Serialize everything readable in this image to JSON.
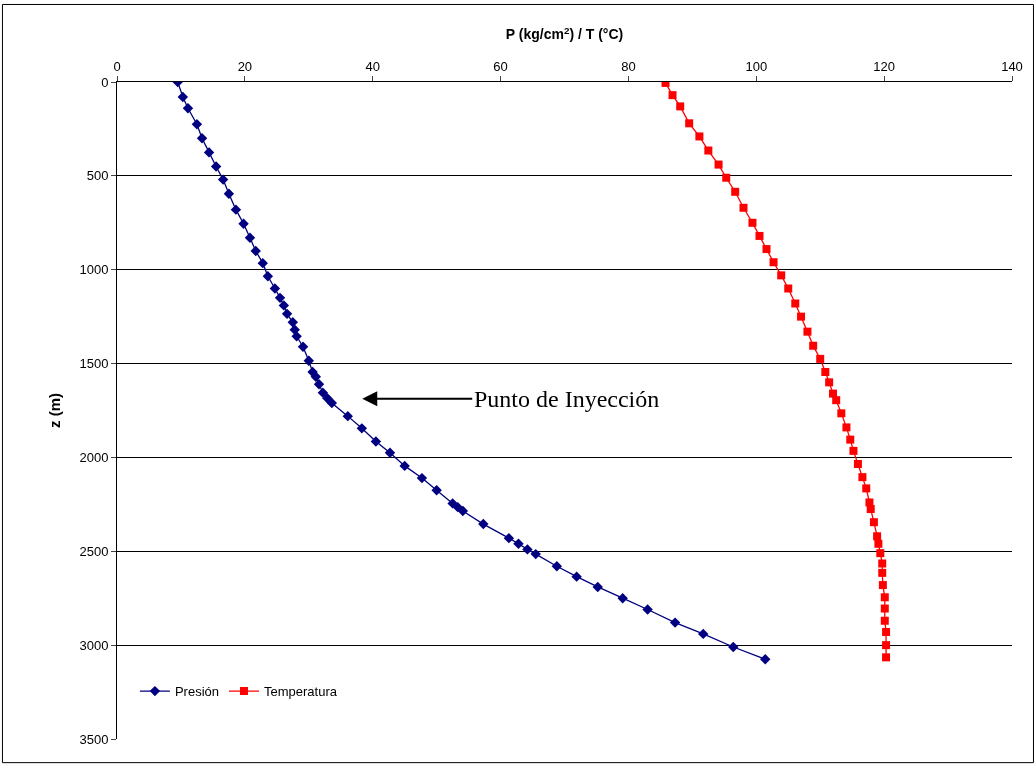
{
  "chart_data": {
    "type": "line",
    "xlabel": "P (kg/cm$^{2}$) / T (°C)",
    "ylabel": "z (m)",
    "xlim": [
      0,
      140
    ],
    "xticks": [
      0,
      20,
      40,
      60,
      80,
      100,
      120,
      140
    ],
    "ylim": [
      3500,
      0
    ],
    "yticks": [
      0,
      500,
      1000,
      1500,
      2000,
      2500,
      3000,
      3500
    ],
    "grid": "y",
    "legend": "bottom left",
    "annotations": [
      "Punto de Inyección"
    ],
    "series": [
      {
        "name": "Presión",
        "color": "#000080",
        "marker": "diamond",
        "x": [
          9.5,
          10.3,
          11.1,
          12.5,
          13.3,
          14.4,
          15.5,
          16.6,
          17.5,
          18.6,
          19.8,
          20.8,
          21.7,
          22.8,
          23.6,
          24.7,
          25.5,
          26.1,
          26.6,
          27.5,
          27.8,
          28.1,
          29.1,
          30.0,
          30.6,
          31.1,
          31.6,
          32.2,
          32.9,
          33.6,
          36.1,
          38.3,
          40.5,
          42.7,
          45.0,
          47.7,
          50.0,
          52.5,
          53.3,
          54.1,
          57.3,
          61.3,
          62.8,
          64.2,
          65.5,
          68.8,
          71.9,
          75.2,
          79.1,
          83.0,
          87.3,
          91.7,
          96.4,
          101.4
        ],
        "values": [
          0,
          80,
          140,
          225,
          300,
          375,
          450,
          520,
          595,
          680,
          755,
          830,
          900,
          965,
          1035,
          1100,
          1150,
          1190,
          1235,
          1280,
          1320,
          1355,
          1410,
          1485,
          1545,
          1570,
          1610,
          1655,
          1685,
          1710,
          1780,
          1845,
          1915,
          1975,
          2045,
          2110,
          2175,
          2245,
          2265,
          2285,
          2355,
          2430,
          2460,
          2490,
          2515,
          2580,
          2635,
          2690,
          2750,
          2810,
          2880,
          2940,
          3010,
          3075
        ]
      },
      {
        "name": "Temperatura",
        "color": "#ff0000",
        "marker": "square",
        "x": [
          85.8,
          86.9,
          88.1,
          89.5,
          91.1,
          92.5,
          94.1,
          95.3,
          96.7,
          98.0,
          99.4,
          100.5,
          101.6,
          102.7,
          103.9,
          105.0,
          106.1,
          107.0,
          108.0,
          108.9,
          110.0,
          110.8,
          111.4,
          112.0,
          112.5,
          113.3,
          114.1,
          114.7,
          115.2,
          115.9,
          116.6,
          117.2,
          117.7,
          117.9,
          118.4,
          118.9,
          119.1,
          119.4,
          119.7,
          119.7,
          119.8,
          120.1,
          120.1,
          120.1,
          120.3,
          120.3,
          120.3
        ],
        "values": [
          5,
          70,
          130,
          220,
          290,
          365,
          440,
          510,
          585,
          670,
          750,
          820,
          890,
          960,
          1030,
          1100,
          1180,
          1250,
          1330,
          1405,
          1475,
          1545,
          1600,
          1660,
          1695,
          1765,
          1840,
          1905,
          1965,
          2035,
          2105,
          2165,
          2240,
          2275,
          2345,
          2420,
          2460,
          2510,
          2565,
          2615,
          2680,
          2745,
          2805,
          2870,
          2930,
          3000,
          3065
        ]
      }
    ]
  }
}
